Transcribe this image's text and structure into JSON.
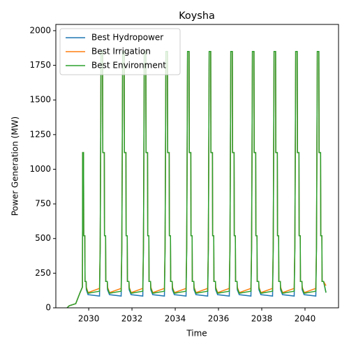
{
  "chart_data": {
    "type": "line",
    "title": "Koysha",
    "xlabel": "Time",
    "ylabel": "Power Generation (MW)",
    "xlim": [
      2028.48,
      2041.55
    ],
    "ylim": [
      0,
      2045
    ],
    "xticks": [
      2030,
      2032,
      2034,
      2036,
      2038,
      2040
    ],
    "yticks": [
      0,
      250,
      500,
      750,
      1000,
      1250,
      1500,
      1750,
      2000
    ],
    "legend": "upper left",
    "x": [
      2029,
      2029.1,
      2029.4,
      2029.6,
      2029.71,
      2029.72,
      2029.76,
      2029.77,
      2029.82,
      2029.83,
      2029.88,
      2029.89,
      2029.97,
      2030.5,
      2030.53,
      2030.55,
      2030.57,
      2030.64,
      2030.65,
      2030.72,
      2030.73,
      2030.78,
      2030.79,
      2030.86,
      2030.87,
      2030.96,
      2031.5,
      2031.53,
      2031.55,
      2031.57,
      2031.64,
      2031.65,
      2031.72,
      2031.73,
      2031.78,
      2031.79,
      2031.86,
      2031.87,
      2031.96,
      2032.5,
      2032.53,
      2032.55,
      2032.57,
      2032.64,
      2032.65,
      2032.72,
      2032.73,
      2032.78,
      2032.79,
      2032.86,
      2032.87,
      2032.96,
      2033.5,
      2033.53,
      2033.55,
      2033.57,
      2033.64,
      2033.65,
      2033.72,
      2033.73,
      2033.78,
      2033.79,
      2033.86,
      2033.87,
      2033.96,
      2034.5,
      2034.53,
      2034.55,
      2034.57,
      2034.64,
      2034.65,
      2034.72,
      2034.73,
      2034.78,
      2034.79,
      2034.86,
      2034.87,
      2034.96,
      2035.5,
      2035.53,
      2035.55,
      2035.57,
      2035.64,
      2035.65,
      2035.72,
      2035.73,
      2035.78,
      2035.79,
      2035.86,
      2035.87,
      2035.96,
      2036.5,
      2036.53,
      2036.55,
      2036.57,
      2036.64,
      2036.65,
      2036.72,
      2036.73,
      2036.78,
      2036.79,
      2036.86,
      2036.87,
      2036.96,
      2037.5,
      2037.53,
      2037.55,
      2037.57,
      2037.64,
      2037.65,
      2037.72,
      2037.73,
      2037.78,
      2037.79,
      2037.86,
      2037.87,
      2037.96,
      2038.5,
      2038.53,
      2038.55,
      2038.57,
      2038.64,
      2038.65,
      2038.72,
      2038.73,
      2038.78,
      2038.79,
      2038.86,
      2038.87,
      2038.96,
      2039.5,
      2039.53,
      2039.55,
      2039.57,
      2039.64,
      2039.65,
      2039.72,
      2039.73,
      2039.78,
      2039.79,
      2039.86,
      2039.87,
      2039.96,
      2040.5,
      2040.53,
      2040.55,
      2040.57,
      2040.64,
      2040.65,
      2040.72,
      2040.73,
      2040.78,
      2040.79,
      2040.86,
      2040.97
    ],
    "series": [
      {
        "name": "Best Hydropower",
        "color": "#1f77b4",
        "values": [
          0,
          15,
          30,
          110,
          150,
          1120,
          1120,
          520,
          520,
          190,
          190,
          130,
          95,
          85,
          420,
          1100,
          1850,
          1850,
          1120,
          1120,
          520,
          520,
          190,
          190,
          130,
          95,
          85,
          420,
          1100,
          1850,
          1850,
          1120,
          1120,
          520,
          520,
          190,
          190,
          130,
          95,
          85,
          420,
          1100,
          1850,
          1850,
          1120,
          1120,
          520,
          520,
          190,
          190,
          130,
          95,
          85,
          420,
          1100,
          1850,
          1850,
          1120,
          1120,
          520,
          520,
          190,
          190,
          130,
          95,
          85,
          420,
          1100,
          1850,
          1850,
          1120,
          1120,
          520,
          520,
          190,
          190,
          130,
          95,
          85,
          420,
          1100,
          1850,
          1850,
          1120,
          1120,
          520,
          520,
          190,
          190,
          130,
          95,
          85,
          420,
          1100,
          1850,
          1850,
          1120,
          1120,
          520,
          520,
          190,
          190,
          130,
          95,
          85,
          420,
          1100,
          1850,
          1850,
          1120,
          1120,
          520,
          520,
          190,
          190,
          130,
          95,
          85,
          420,
          1100,
          1850,
          1850,
          1120,
          1120,
          520,
          520,
          190,
          190,
          130,
          95,
          85,
          420,
          1100,
          1850,
          1850,
          1120,
          1120,
          520,
          520,
          190,
          190,
          130,
          95,
          85,
          420,
          1100,
          1850,
          1850,
          1120,
          1120,
          520,
          520,
          190,
          190,
          110
        ]
      },
      {
        "name": "Best Irrigation",
        "color": "#ff7f0e",
        "values": [
          0,
          15,
          30,
          110,
          150,
          1120,
          1120,
          520,
          520,
          190,
          190,
          150,
          110,
          140,
          440,
          1100,
          1850,
          1850,
          1120,
          1120,
          520,
          520,
          190,
          190,
          150,
          110,
          140,
          440,
          1100,
          1850,
          1850,
          1120,
          1120,
          520,
          520,
          190,
          190,
          150,
          110,
          140,
          440,
          1100,
          1850,
          1850,
          1120,
          1120,
          520,
          520,
          190,
          190,
          150,
          110,
          140,
          440,
          1100,
          1850,
          1850,
          1120,
          1120,
          520,
          520,
          190,
          190,
          150,
          110,
          140,
          440,
          1100,
          1850,
          1850,
          1120,
          1120,
          520,
          520,
          190,
          190,
          150,
          110,
          140,
          440,
          1100,
          1850,
          1850,
          1120,
          1120,
          520,
          520,
          190,
          190,
          150,
          110,
          140,
          440,
          1100,
          1850,
          1850,
          1120,
          1120,
          520,
          520,
          190,
          190,
          150,
          110,
          140,
          440,
          1100,
          1850,
          1850,
          1120,
          1120,
          520,
          520,
          190,
          190,
          150,
          110,
          140,
          440,
          1100,
          1850,
          1850,
          1120,
          1120,
          520,
          520,
          190,
          190,
          150,
          110,
          140,
          440,
          1100,
          1850,
          1850,
          1120,
          1120,
          520,
          520,
          190,
          190,
          150,
          110,
          140,
          440,
          1100,
          1850,
          1850,
          1120,
          1120,
          520,
          520,
          190,
          190,
          160
        ]
      },
      {
        "name": "Best Environment",
        "color": "#2ca02c",
        "values": [
          0,
          15,
          30,
          110,
          150,
          1120,
          1120,
          520,
          520,
          190,
          190,
          140,
          105,
          120,
          430,
          1100,
          1850,
          1850,
          1120,
          1120,
          520,
          520,
          190,
          190,
          140,
          105,
          120,
          430,
          1100,
          1850,
          1850,
          1120,
          1120,
          520,
          520,
          190,
          190,
          140,
          105,
          120,
          430,
          1100,
          1850,
          1850,
          1120,
          1120,
          520,
          520,
          190,
          190,
          140,
          105,
          120,
          430,
          1100,
          1850,
          1850,
          1120,
          1120,
          520,
          520,
          190,
          190,
          140,
          105,
          120,
          430,
          1100,
          1850,
          1850,
          1120,
          1120,
          520,
          520,
          190,
          190,
          140,
          105,
          120,
          430,
          1100,
          1850,
          1850,
          1120,
          1120,
          520,
          520,
          190,
          190,
          140,
          105,
          120,
          430,
          1100,
          1850,
          1850,
          1120,
          1120,
          520,
          520,
          190,
          190,
          140,
          105,
          120,
          430,
          1100,
          1850,
          1850,
          1120,
          1120,
          520,
          520,
          190,
          190,
          140,
          105,
          120,
          430,
          1100,
          1850,
          1850,
          1120,
          1120,
          520,
          520,
          190,
          190,
          140,
          105,
          120,
          430,
          1100,
          1850,
          1850,
          1120,
          1120,
          520,
          520,
          190,
          190,
          140,
          105,
          120,
          430,
          1100,
          1850,
          1850,
          1120,
          1120,
          520,
          520,
          190,
          190,
          110
        ]
      }
    ]
  }
}
